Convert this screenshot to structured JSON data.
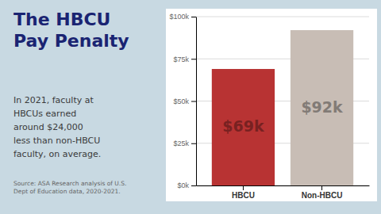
{
  "chart_data": {
    "type": "bar",
    "title": "The HBCU\nPay Penalty",
    "subtitle": "In 2021, faculty at\nHBCUs earned\naround $24,000\nless than non-HBCU\nfaculty, on average.",
    "annotations": [
      "Source: ASA Research analysis of U.S.\nDept of Education data, 2020-2021."
    ],
    "categories": [
      "HBCU",
      "Non-HBCU"
    ],
    "values": [
      69000,
      92000
    ],
    "value_labels": [
      "$69k",
      "$92k"
    ],
    "colors": [
      "#b83333",
      "#c8bdb5"
    ],
    "data_labels": true,
    "ylim": [
      0,
      100000
    ],
    "yticks": [
      {
        "value": 0,
        "label": "$0k"
      },
      {
        "value": 25000,
        "label": "$25k"
      },
      {
        "value": 50000,
        "label": "$50k"
      },
      {
        "value": 75000,
        "label": "$75k"
      },
      {
        "value": 100000,
        "label": "$100k"
      }
    ],
    "grid": true
  }
}
